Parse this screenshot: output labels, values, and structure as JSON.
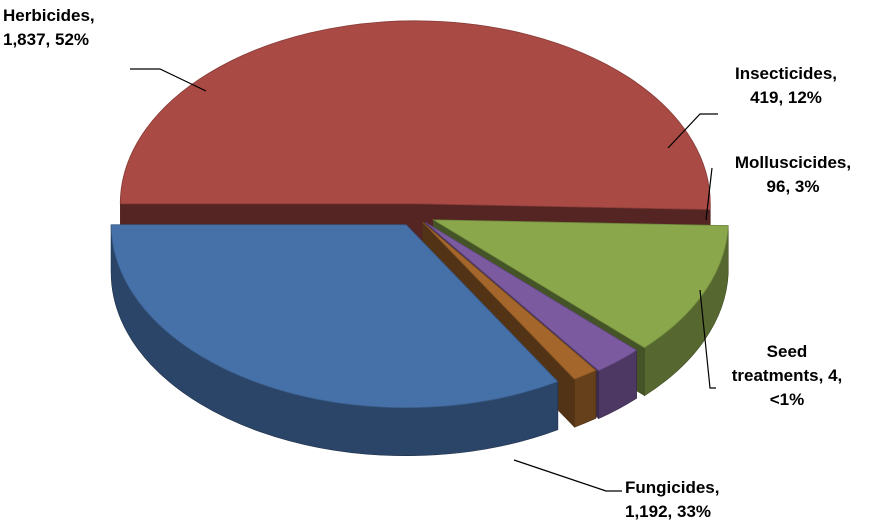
{
  "chart_data": {
    "type": "pie",
    "title": "",
    "slices": [
      {
        "name": "Herbicides",
        "value": 1837,
        "percent": "52%",
        "color": "#a94a45",
        "label_lines": [
          "Herbicides,",
          "1,837, 52%"
        ]
      },
      {
        "name": "Insecticides",
        "value": 419,
        "percent": "12%",
        "color": "#8aa84b",
        "label_lines": [
          "Insecticides,",
          "419, 12%"
        ]
      },
      {
        "name": "Molluscicides",
        "value": 96,
        "percent": "3%",
        "color": "#7b5aa0",
        "label_lines": [
          "Molluscicides,",
          "96, 3%"
        ]
      },
      {
        "name": "Seed treatments",
        "value": 4,
        "percent": "<1%",
        "color": "#a4662b",
        "label_lines": [
          "Seed",
          "treatments, 4,",
          "<1%"
        ]
      },
      {
        "name": "Fungicides",
        "value": 1192,
        "percent": "33%",
        "color": "#4670a8",
        "label_lines": [
          "Fungicides,",
          "1,192, 33%"
        ]
      }
    ],
    "legend": "none",
    "style": "3d-exploded"
  }
}
